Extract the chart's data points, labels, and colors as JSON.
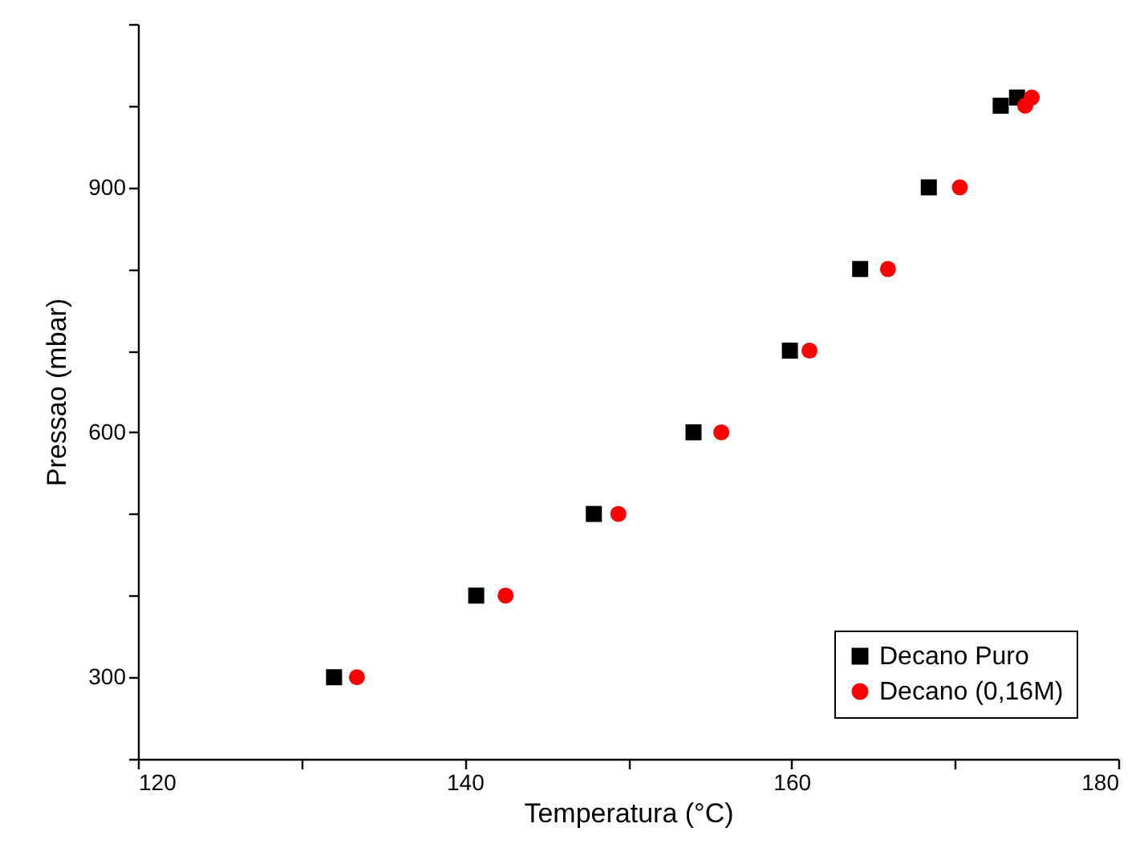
{
  "chart_data": {
    "type": "scatter",
    "xlabel": "Temperatura (°C)",
    "ylabel": "Pressao (mbar)",
    "xlim": [
      120,
      180
    ],
    "xticks": [
      120,
      {
        "value": 130,
        "label": null
      },
      140,
      {
        "value": 150,
        "label": null
      },
      160,
      {
        "value": 170,
        "label": null
      },
      180
    ],
    "ylim": [
      200,
      1100
    ],
    "yticks": [
      {
        "value": 200,
        "label": null
      },
      300,
      {
        "value": 400,
        "label": null
      },
      {
        "value": 500,
        "label": null
      },
      600,
      {
        "value": 700,
        "label": null
      },
      {
        "value": 800,
        "label": null
      },
      900,
      {
        "value": 1000,
        "label": null
      },
      {
        "value": 1100,
        "label": null
      }
    ],
    "legend": "bottom right",
    "series": [
      {
        "name": "Decano Puro",
        "color": "#000000",
        "marker": "square",
        "x": [
          132.0,
          140.7,
          147.9,
          154.0,
          159.9,
          164.2,
          168.4,
          172.8,
          173.8
        ],
        "values": [
          300,
          400,
          500,
          600,
          700,
          800,
          900,
          1000,
          1010
        ]
      },
      {
        "name": "Decano (0,16M)",
        "color": "#ff0000",
        "marker": "circle",
        "x": [
          133.4,
          142.5,
          149.4,
          155.7,
          161.1,
          165.9,
          170.3,
          174.3,
          174.7
        ],
        "values": [
          300,
          400,
          500,
          600,
          700,
          800,
          900,
          1000,
          1010
        ]
      }
    ]
  }
}
